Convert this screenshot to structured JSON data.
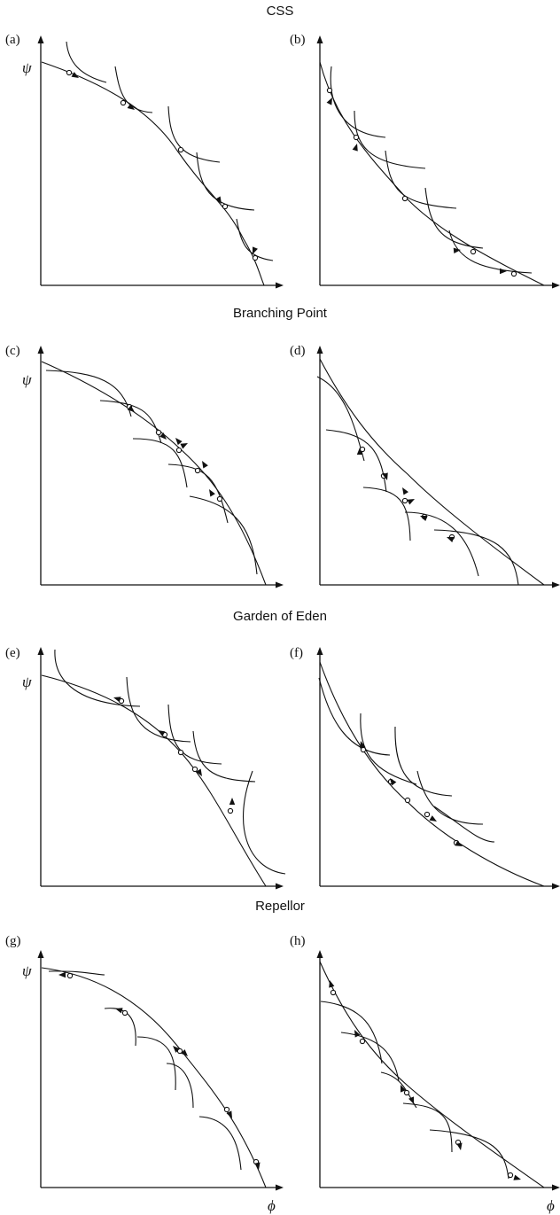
{
  "sections": [
    {
      "title": "CSS",
      "panels": [
        "(a)",
        "(b)"
      ]
    },
    {
      "title": "Branching Point",
      "panels": [
        "(c)",
        "(d)"
      ]
    },
    {
      "title": "Garden of Eden",
      "panels": [
        "(e)",
        "(f)"
      ]
    },
    {
      "title": "Repellor",
      "panels": [
        "(g)",
        "(h)"
      ]
    }
  ],
  "axes": {
    "y_label": "ψ",
    "x_label": "ϕ"
  },
  "colors": {
    "ink": "#111111",
    "background": "#ffffff",
    "marker_fill": "#ffffff"
  }
}
